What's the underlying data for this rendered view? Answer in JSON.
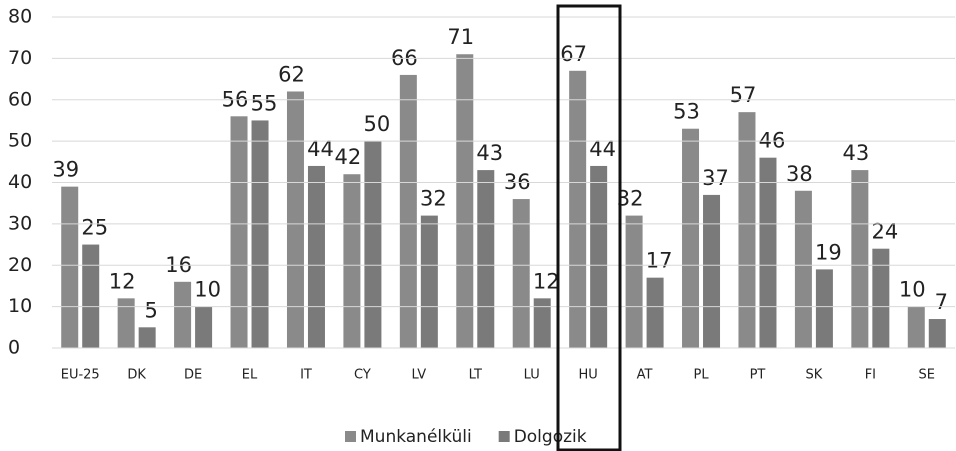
{
  "chart_data": {
    "type": "bar",
    "categories": [
      "EU-25",
      "DK",
      "DE",
      "EL",
      "IT",
      "CY",
      "LV",
      "LT",
      "LU",
      "HU",
      "AT",
      "PL",
      "PT",
      "SK",
      "FI",
      "SE"
    ],
    "series": [
      {
        "name": "Munkanélküli",
        "color": "#8a8a8a",
        "values": [
          39,
          12,
          16,
          56,
          62,
          42,
          66,
          71,
          36,
          67,
          32,
          53,
          57,
          38,
          43,
          10
        ]
      },
      {
        "name": "Dolgozik",
        "color": "#7a7a7a",
        "values": [
          25,
          5,
          10,
          55,
          44,
          50,
          32,
          43,
          12,
          44,
          17,
          37,
          46,
          19,
          24,
          7
        ]
      }
    ],
    "ylim": [
      0,
      80
    ],
    "yticks": [
      0,
      10,
      20,
      30,
      40,
      50,
      60,
      70,
      80
    ],
    "grid": true,
    "legend": "bottom"
  }
}
